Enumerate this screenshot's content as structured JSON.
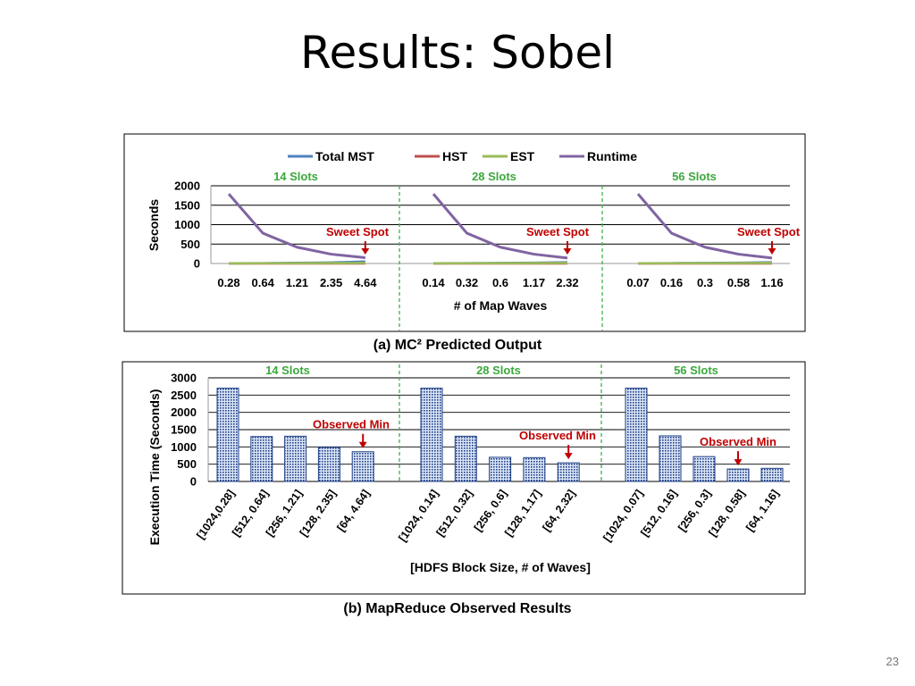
{
  "slide": {
    "title": "Results: Sobel",
    "page_number": "23",
    "caption_a": "(a) MC² Predicted Output",
    "caption_b": "(b) MapReduce Observed Results"
  },
  "colors": {
    "total_mst": "#4F81BD",
    "hst": "#C0504D",
    "est": "#9BBB59",
    "runtime": "#8064A2",
    "slot_label": "#3CA83C",
    "annotation": "#C00000",
    "divider": "#3CB24A",
    "bar_fill": "#9FB5E4",
    "bar_stroke": "#1F3F86"
  },
  "chart_data": [
    {
      "type": "line",
      "ylabel": "Seconds",
      "xlabel": "# of Map Waves",
      "ylim": [
        0,
        2000
      ],
      "yticks": [
        0,
        500,
        1000,
        1500,
        2000
      ],
      "grid": true,
      "legend": [
        "Total MST",
        "HST",
        "EST",
        "Runtime"
      ],
      "legend_position": "top",
      "groups": [
        {
          "label": "14 Slots",
          "x": [
            "0.28",
            "0.64",
            "1.21",
            "2.35",
            "4.64"
          ],
          "series": [
            {
              "name": "Total MST",
              "values": [
                5,
                8,
                15,
                25,
                50
              ]
            },
            {
              "name": "HST",
              "values": [
                0,
                0,
                0,
                0,
                0
              ]
            },
            {
              "name": "EST",
              "values": [
                5,
                6,
                8,
                10,
                12
              ]
            },
            {
              "name": "Runtime",
              "values": [
                1790,
                780,
                420,
                240,
                150
              ]
            }
          ],
          "annotation": "Sweet Spot"
        },
        {
          "label": "28 Slots",
          "x": [
            "0.14",
            "0.32",
            "0.6",
            "1.17",
            "2.32"
          ],
          "series": [
            {
              "name": "Total MST",
              "values": [
                5,
                8,
                12,
                20,
                30
              ]
            },
            {
              "name": "HST",
              "values": [
                0,
                0,
                0,
                0,
                0
              ]
            },
            {
              "name": "EST",
              "values": [
                5,
                6,
                8,
                10,
                12
              ]
            },
            {
              "name": "Runtime",
              "values": [
                1790,
                780,
                420,
                240,
                140
              ]
            }
          ],
          "annotation": "Sweet Spot"
        },
        {
          "label": "56 Slots",
          "x": [
            "0.07",
            "0.16",
            "0.3",
            "0.58",
            "1.16"
          ],
          "series": [
            {
              "name": "Total MST",
              "values": [
                5,
                8,
                12,
                20,
                30
              ]
            },
            {
              "name": "HST",
              "values": [
                0,
                0,
                0,
                0,
                0
              ]
            },
            {
              "name": "EST",
              "values": [
                5,
                6,
                8,
                10,
                12
              ]
            },
            {
              "name": "Runtime",
              "values": [
                1790,
                780,
                420,
                240,
                140
              ]
            }
          ],
          "annotation": "Sweet Spot"
        }
      ]
    },
    {
      "type": "bar",
      "ylabel": "Execution Time (Seconds)",
      "xlabel": "[HDFS Block Size, # of Waves]",
      "ylim": [
        0,
        3000
      ],
      "yticks": [
        0,
        500,
        1000,
        1500,
        2000,
        2500,
        3000
      ],
      "grid": true,
      "groups": [
        {
          "label": "14 Slots",
          "categories": [
            "[1024,0.28]",
            "[512, 0.64]",
            "[256, 1.21]",
            "[128, 2.35]",
            "[64, 4.64]"
          ],
          "values": [
            2700,
            1300,
            1310,
            990,
            860
          ],
          "annotation": "Observed Min"
        },
        {
          "label": "28 Slots",
          "categories": [
            "[1024, 0.14]",
            "[512, 0.32]",
            "[256, 0.6]",
            "[128, 1.17]",
            "[64, 2.32]"
          ],
          "values": [
            2700,
            1310,
            700,
            690,
            540
          ],
          "annotation": "Observed Min"
        },
        {
          "label": "56 Slots",
          "categories": [
            "[1024, 0.07]",
            "[512, 0.16]",
            "[256, 0.3]",
            "[128, 0.58]",
            "[64, 1.16]"
          ],
          "values": [
            2700,
            1320,
            720,
            360,
            380
          ],
          "annotation": "Observed Min"
        }
      ]
    }
  ]
}
